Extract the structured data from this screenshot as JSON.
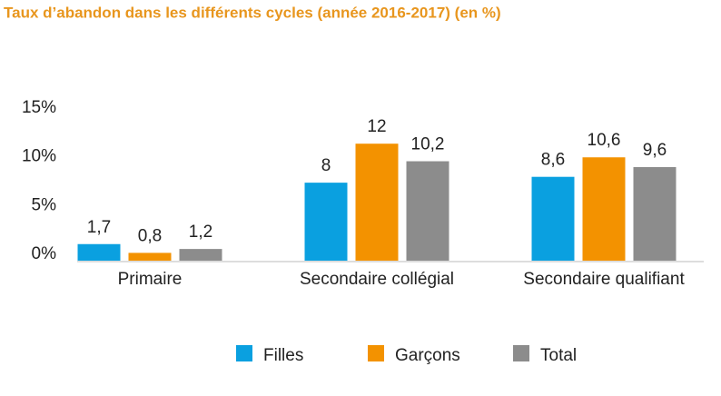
{
  "chart_data": {
    "type": "bar",
    "title": "Taux d’abandon dans les différents cycles (année 2016-2017)  (en %)",
    "categories": [
      "Primaire",
      "Secondaire collégial",
      "Secondaire qualifiant"
    ],
    "series": [
      {
        "name": "Filles",
        "color": "#0aa0e0",
        "values": [
          1.7,
          8,
          8.6
        ],
        "value_labels": [
          "1,7",
          "8",
          "8,6"
        ]
      },
      {
        "name": "Garçons",
        "color": "#f39200",
        "values": [
          0.8,
          12,
          10.6
        ],
        "value_labels": [
          "0,8",
          "12",
          "10,6"
        ]
      },
      {
        "name": "Total",
        "color": "#8c8c8c",
        "values": [
          1.2,
          10.2,
          9.6
        ],
        "value_labels": [
          "1,2",
          "10,2",
          "9,6"
        ]
      }
    ],
    "ylim": [
      0,
      15
    ],
    "yticks": [
      {
        "value": 0,
        "label": "0%"
      },
      {
        "value": 5,
        "label": "5%"
      },
      {
        "value": 10,
        "label": "10%"
      },
      {
        "value": 15,
        "label": "15%"
      }
    ],
    "legend": "bottom"
  }
}
